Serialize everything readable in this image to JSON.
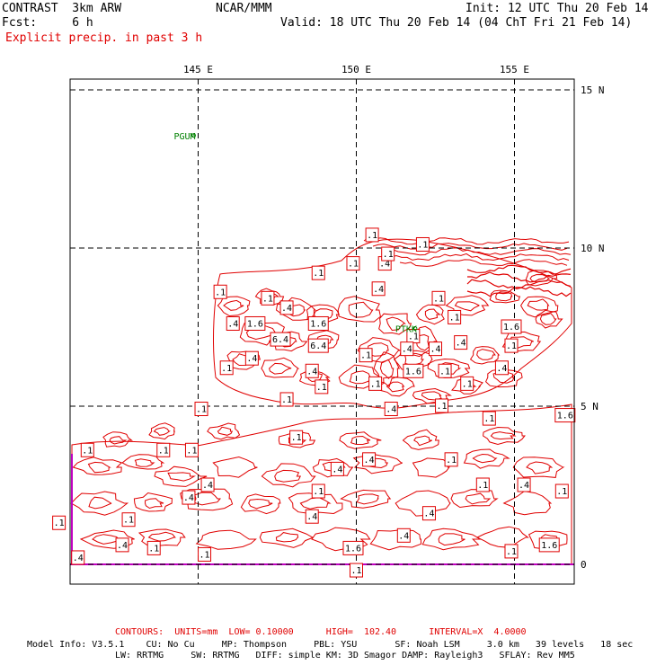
{
  "header": {
    "model_name": "CONTRAST  3km ARW",
    "center": "NCAR/MMM",
    "init": "Init: 12 UTC Thu 20 Feb 14",
    "fcst": "Fcst:     6 h",
    "valid": "Valid: 18 UTC Thu 20 Feb 14 (04 ChT Fri 21 Feb 14)",
    "field": "Explicit precip. in past 3 h"
  },
  "map": {
    "lon_labels": [
      "145 E",
      "150 E",
      "155 E"
    ],
    "lat_labels": [
      "15 N",
      "10 N",
      "5 N",
      "0"
    ],
    "stations": [
      {
        "name": "PGUM",
        "lon": 144.8,
        "lat": 13.5
      },
      {
        "name": "PTKK",
        "lon": 151.8,
        "lat": 7.4
      }
    ],
    "contour_color": "#e00000",
    "boundary_color": "#c000c0",
    "station_color": "#008000",
    "contour_labels": [
      {
        "t": ".1",
        "lon": 150.5,
        "lat": 10.4
      },
      {
        "t": ".1",
        "lon": 152.1,
        "lat": 10.1
      },
      {
        "t": ".1",
        "lon": 148.8,
        "lat": 9.2
      },
      {
        "t": ".1",
        "lon": 149.9,
        "lat": 9.5
      },
      {
        "t": ".4",
        "lon": 150.9,
        "lat": 9.5
      },
      {
        "t": ".4",
        "lon": 150.7,
        "lat": 8.7
      },
      {
        "t": ".1",
        "lon": 145.7,
        "lat": 8.6
      },
      {
        "t": ".1",
        "lon": 147.2,
        "lat": 8.4
      },
      {
        "t": ".4",
        "lon": 147.8,
        "lat": 8.1
      },
      {
        "t": ".1",
        "lon": 152.6,
        "lat": 8.4
      },
      {
        "t": ".1",
        "lon": 153.1,
        "lat": 7.8
      },
      {
        "t": "1.6",
        "lon": 154.9,
        "lat": 7.5
      },
      {
        "t": ".4",
        "lon": 146.1,
        "lat": 7.6
      },
      {
        "t": "1.6",
        "lon": 146.8,
        "lat": 7.6
      },
      {
        "t": "1.6",
        "lon": 148.8,
        "lat": 7.6
      },
      {
        "t": "6.4",
        "lon": 147.6,
        "lat": 7.1
      },
      {
        "t": "6.4",
        "lon": 148.8,
        "lat": 6.9
      },
      {
        "t": ".1",
        "lon": 151.8,
        "lat": 7.2
      },
      {
        "t": ".4",
        "lon": 151.6,
        "lat": 6.8
      },
      {
        "t": ".4",
        "lon": 152.5,
        "lat": 6.8
      },
      {
        "t": ".4",
        "lon": 153.3,
        "lat": 7.0
      },
      {
        "t": ".1",
        "lon": 154.9,
        "lat": 6.9
      },
      {
        "t": ".1",
        "lon": 150.3,
        "lat": 6.6
      },
      {
        "t": ".4",
        "lon": 146.7,
        "lat": 6.5
      },
      {
        "t": ".1",
        "lon": 145.9,
        "lat": 6.2
      },
      {
        "t": ".4",
        "lon": 148.6,
        "lat": 6.1
      },
      {
        "t": "1.6",
        "lon": 151.8,
        "lat": 6.1
      },
      {
        "t": ".1",
        "lon": 152.8,
        "lat": 6.1
      },
      {
        "t": ".4",
        "lon": 154.6,
        "lat": 6.2
      },
      {
        "t": ".1",
        "lon": 153.5,
        "lat": 5.7
      },
      {
        "t": ".1",
        "lon": 148.9,
        "lat": 5.6
      },
      {
        "t": ".1",
        "lon": 147.8,
        "lat": 5.2
      },
      {
        "t": ".1",
        "lon": 150.6,
        "lat": 5.7
      },
      {
        "t": ".1",
        "lon": 145.1,
        "lat": 4.9
      },
      {
        "t": ".4",
        "lon": 151.1,
        "lat": 4.9
      },
      {
        "t": ".1",
        "lon": 152.7,
        "lat": 5.0
      },
      {
        "t": ".1",
        "lon": 154.2,
        "lat": 4.6
      },
      {
        "t": "1.6",
        "lon": 156.6,
        "lat": 4.7
      },
      {
        "t": ".1",
        "lon": 148.1,
        "lat": 4.0
      },
      {
        "t": ".1",
        "lon": 141.5,
        "lat": 3.6
      },
      {
        "t": ".1",
        "lon": 143.9,
        "lat": 3.6
      },
      {
        "t": ".1",
        "lon": 144.8,
        "lat": 3.6
      },
      {
        "t": ".4",
        "lon": 150.4,
        "lat": 3.3
      },
      {
        "t": ".4",
        "lon": 149.4,
        "lat": 3.0
      },
      {
        "t": ".1",
        "lon": 153.0,
        "lat": 3.3
      },
      {
        "t": ".4",
        "lon": 145.3,
        "lat": 2.5
      },
      {
        "t": ".4",
        "lon": 144.7,
        "lat": 2.1
      },
      {
        "t": ".1",
        "lon": 148.8,
        "lat": 2.3
      },
      {
        "t": ".1",
        "lon": 154.0,
        "lat": 2.5
      },
      {
        "t": ".4",
        "lon": 155.3,
        "lat": 2.5
      },
      {
        "t": ".1",
        "lon": 156.5,
        "lat": 2.3
      },
      {
        "t": ".4",
        "lon": 148.6,
        "lat": 1.5
      },
      {
        "t": ".4",
        "lon": 152.3,
        "lat": 1.6
      },
      {
        "t": ".1",
        "lon": 142.8,
        "lat": 1.4
      },
      {
        "t": ".1",
        "lon": 140.6,
        "lat": 1.3
      },
      {
        "t": ".4",
        "lon": 151.5,
        "lat": 0.9
      },
      {
        "t": ".4",
        "lon": 142.6,
        "lat": 0.6
      },
      {
        "t": ".1",
        "lon": 143.6,
        "lat": 0.5
      },
      {
        "t": ".4",
        "lon": 141.2,
        "lat": 0.2
      },
      {
        "t": ".1",
        "lon": 145.2,
        "lat": 0.3
      },
      {
        "t": "1.6",
        "lon": 149.9,
        "lat": 0.5
      },
      {
        "t": ".1",
        "lon": 154.9,
        "lat": 0.4
      },
      {
        "t": "1.6",
        "lon": 156.1,
        "lat": 0.6
      },
      {
        "t": ".1",
        "lon": 150.0,
        "lat": -0.2
      },
      {
        "t": ".1",
        "lon": 151.0,
        "lat": 9.8
      }
    ]
  },
  "footer": {
    "contours": "CONTOURS:  UNITS=mm  LOW= 0.10000      HIGH=  102.40      INTERVAL=X  4.0000",
    "model_info_1": "Model Info: V3.5.1    CU: No Cu     MP: Thompson     PBL: YSU       SF: Noah LSM     3.0 km   39 levels   18 sec",
    "model_info_2": "LW: RRTMG     SW: RRTMG   DIFF: simple KM: 3D Smagor DAMP: Rayleigh3   SFLAY: Rev MM5"
  }
}
